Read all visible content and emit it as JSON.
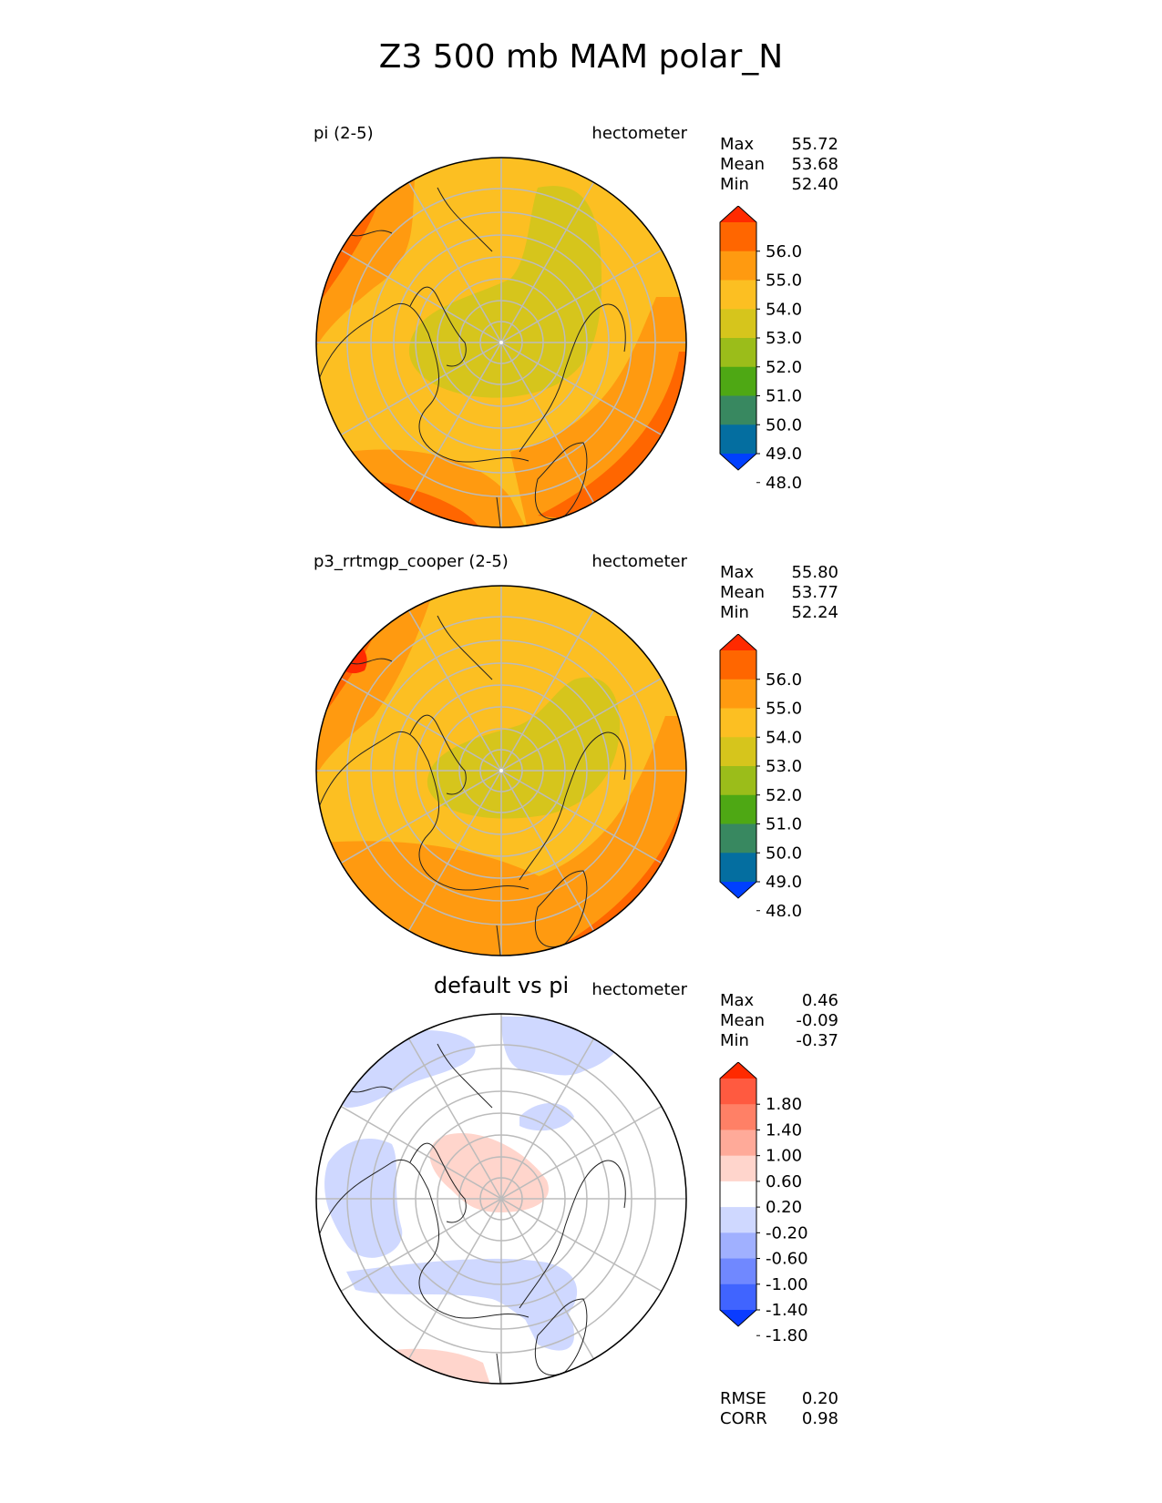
{
  "title": "Z3 500 mb MAM polar_N",
  "panels": [
    {
      "label": "pi (2-5)",
      "units": "hectometer",
      "stats": [
        {
          "name": "Max",
          "value": "55.72"
        },
        {
          "name": "Mean",
          "value": "53.68"
        },
        {
          "name": "Min",
          "value": "52.40"
        }
      ],
      "colorbar": {
        "ticks": [
          "56.0",
          "55.0",
          "54.0",
          "53.0",
          "52.0",
          "51.0",
          "50.0",
          "49.0",
          "48.0"
        ],
        "colors": [
          "#ff2a00",
          "#ff6600",
          "#ff9a10",
          "#fcbf22",
          "#d6c51c",
          "#9bbd1a",
          "#4ea814",
          "#388860",
          "#046ea0",
          "#0040ff"
        ]
      }
    },
    {
      "label": "p3_rrtmgp_cooper (2-5)",
      "units": "hectometer",
      "stats": [
        {
          "name": "Max",
          "value": "55.80"
        },
        {
          "name": "Mean",
          "value": "53.77"
        },
        {
          "name": "Min",
          "value": "52.24"
        }
      ],
      "colorbar": {
        "ticks": [
          "56.0",
          "55.0",
          "54.0",
          "53.0",
          "52.0",
          "51.0",
          "50.0",
          "49.0",
          "48.0"
        ],
        "colors": [
          "#ff2a00",
          "#ff6600",
          "#ff9a10",
          "#fcbf22",
          "#d6c51c",
          "#9bbd1a",
          "#4ea814",
          "#388860",
          "#046ea0",
          "#0040ff"
        ]
      }
    },
    {
      "label": "default vs pi",
      "units": "hectometer",
      "stats": [
        {
          "name": "Max",
          "value": "0.46"
        },
        {
          "name": "Mean",
          "value": "-0.09"
        },
        {
          "name": "Min",
          "value": "-0.37"
        }
      ],
      "colorbar": {
        "ticks": [
          "1.80",
          "1.40",
          "1.00",
          "0.60",
          "0.20",
          "-0.20",
          "-0.60",
          "-1.00",
          "-1.40",
          "-1.80"
        ],
        "colors": [
          "#ff2a00",
          "#ff5a40",
          "#ff8066",
          "#ffaa99",
          "#ffd5cc",
          "#ffffff",
          "#cfd8ff",
          "#a0b0ff",
          "#7088ff",
          "#4064ff",
          "#0a3cff"
        ]
      }
    }
  ],
  "footer_stats": [
    {
      "name": "RMSE",
      "value": "0.20"
    },
    {
      "name": "CORR",
      "value": "0.98"
    }
  ]
}
